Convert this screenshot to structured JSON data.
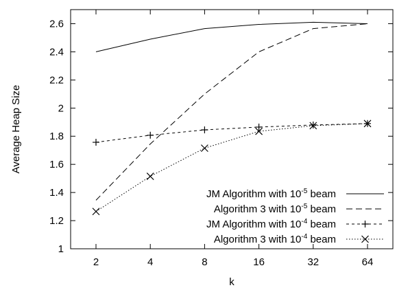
{
  "chart_data": {
    "type": "line",
    "x_scale": "log2",
    "categories": [
      "2",
      "4",
      "8",
      "16",
      "32",
      "64"
    ],
    "x": [
      2,
      4,
      8,
      16,
      32,
      64
    ],
    "xlabel": "k",
    "ylabel": "Average Heap Size",
    "ylim": [
      1,
      2.7
    ],
    "yticks": [
      "1",
      "1.2",
      "1.4",
      "1.6",
      "1.8",
      "2",
      "2.2",
      "2.4",
      "2.6"
    ],
    "grid": false,
    "legend_position": "bottom-right",
    "series": [
      {
        "name_pre": "JM Algorithm with 10",
        "name_exp": "-5",
        "name_post": " beam",
        "style": "solid",
        "marker": "none",
        "values": [
          2.4,
          2.49,
          2.565,
          2.595,
          2.61,
          2.6
        ]
      },
      {
        "name_pre": "Algorithm 3 with 10",
        "name_exp": "-5",
        "name_post": " beam",
        "style": "dashed",
        "marker": "none",
        "values": [
          1.345,
          1.745,
          2.1,
          2.4,
          2.565,
          2.6
        ]
      },
      {
        "name_pre": "JM Algorithm with 10",
        "name_exp": "-4",
        "name_post": " beam",
        "style": "short-dashed",
        "marker": "plus",
        "values": [
          1.757,
          1.807,
          1.845,
          1.865,
          1.88,
          1.89
        ]
      },
      {
        "name_pre": "Algorithm 3 with 10",
        "name_exp": "-4",
        "name_post": " beam",
        "style": "dotted",
        "marker": "cross",
        "values": [
          1.265,
          1.515,
          1.715,
          1.835,
          1.875,
          1.89
        ]
      }
    ]
  }
}
